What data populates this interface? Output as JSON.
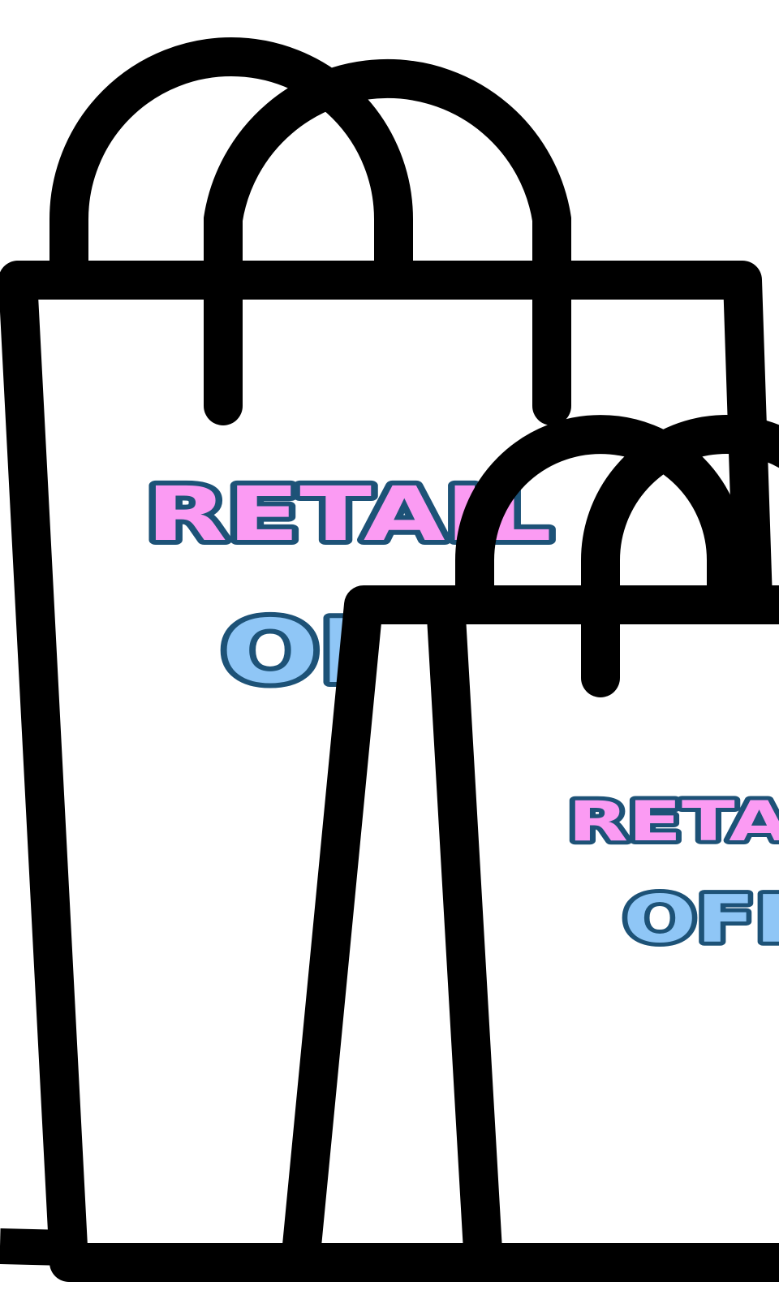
{
  "colors": {
    "background": "#ffffff",
    "outline": "#000000",
    "bag_fill": "#ffffff",
    "retail_text": "#fb9bf3",
    "off_text": "#8fc6f6",
    "text_outline": "#1d5277"
  },
  "large_bag": {
    "line1": "RETAIL",
    "line2": "OFF"
  },
  "small_bag": {
    "line1": "RETAIL",
    "line2": "OFF"
  }
}
